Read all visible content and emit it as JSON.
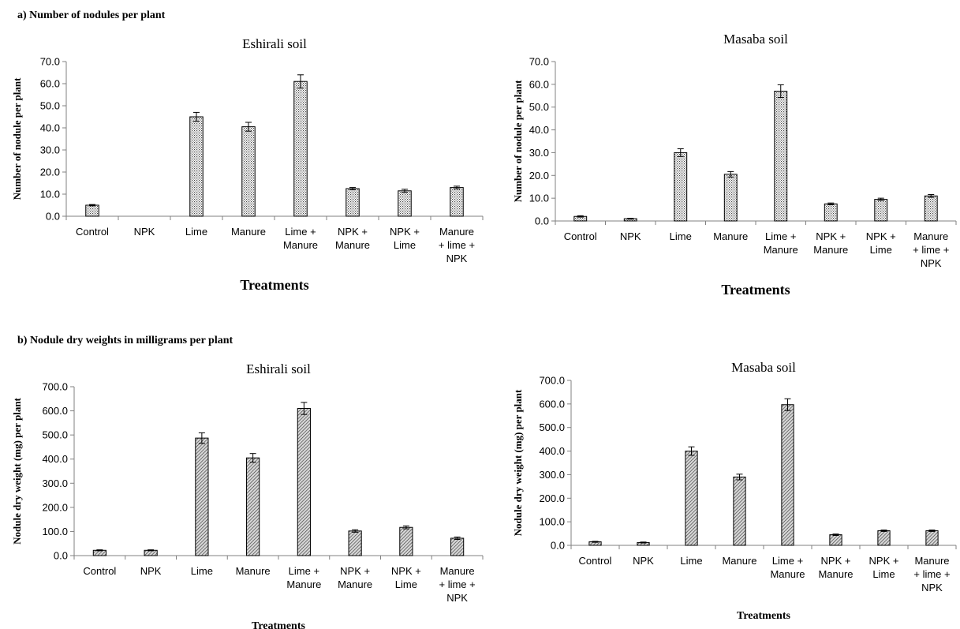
{
  "sections": [
    {
      "label": "a)   Number of nodules per plant"
    },
    {
      "label": "b)   Nodule dry weights in milligrams per plant"
    }
  ],
  "chart_data": [
    {
      "type": "bar",
      "title": "Eshirali   soil",
      "xlabel": "Treatments",
      "ylabel": "Number of nodule per plant",
      "ylim": [
        0,
        70
      ],
      "yticks": [
        "0.0",
        "10.0",
        "20.0",
        "30.0",
        "40.0",
        "50.0",
        "60.0",
        "70.0"
      ],
      "categories": [
        "Control",
        "NPK",
        "Lime",
        "Manure",
        "Lime + Manure",
        "NPK + Manure",
        "NPK + Lime",
        "Manure + lime + NPK"
      ],
      "category_lines": [
        [
          "Control"
        ],
        [
          "NPK"
        ],
        [
          "Lime"
        ],
        [
          "Manure"
        ],
        [
          "Lime +",
          "Manure"
        ],
        [
          "NPK +",
          "Manure"
        ],
        [
          "NPK +",
          "Lime"
        ],
        [
          "Manure",
          "+ lime +",
          "NPK"
        ]
      ],
      "values": [
        5.0,
        0.0,
        45.0,
        40.5,
        61.0,
        12.5,
        11.5,
        13.0
      ],
      "errors": [
        0.3,
        0.0,
        2.0,
        2.0,
        3.0,
        0.5,
        0.7,
        0.6
      ],
      "bar_fill": "dotted",
      "grid": false,
      "legend": "none"
    },
    {
      "type": "bar",
      "title": "Masaba soil",
      "xlabel": "Treatments",
      "ylabel": "Number of nodule per plant",
      "ylim": [
        0,
        70
      ],
      "yticks": [
        "0.0",
        "10.0",
        "20.0",
        "30.0",
        "40.0",
        "50.0",
        "60.0",
        "70.0"
      ],
      "categories": [
        "Control",
        "NPK",
        "Lime",
        "Manure",
        "Lime + Manure",
        "NPK + Manure",
        "NPK + Lime",
        "Manure + lime + NPK"
      ],
      "category_lines": [
        [
          "Control"
        ],
        [
          "NPK"
        ],
        [
          "Lime"
        ],
        [
          "Manure"
        ],
        [
          "Lime +",
          "Manure"
        ],
        [
          "NPK +",
          "Manure"
        ],
        [
          "NPK +",
          "Lime"
        ],
        [
          "Manure",
          "+ lime +",
          "NPK"
        ]
      ],
      "values": [
        2.0,
        1.0,
        30.0,
        20.5,
        57.0,
        7.5,
        9.5,
        11.0
      ],
      "errors": [
        0.3,
        0.2,
        1.7,
        1.2,
        2.8,
        0.4,
        0.5,
        0.6
      ],
      "bar_fill": "dotted",
      "grid": false,
      "legend": "none"
    },
    {
      "type": "bar",
      "title": "Eshirali   soil",
      "xlabel": "Treatments",
      "ylabel": "Nodule dry weight (mg) per plant",
      "ylim": [
        0,
        700
      ],
      "yticks": [
        "0.0",
        "100.0",
        "200.0",
        "300.0",
        "400.0",
        "500.0",
        "600.0",
        "700.0"
      ],
      "categories": [
        "Control",
        "NPK",
        "Lime",
        "Manure",
        "Lime + Manure",
        "NPK + Manure",
        "NPK + Lime",
        "Manure + lime + NPK"
      ],
      "category_lines": [
        [
          "Control"
        ],
        [
          "NPK"
        ],
        [
          "Lime"
        ],
        [
          "Manure"
        ],
        [
          "Lime +",
          "Manure"
        ],
        [
          "NPK +",
          "Manure"
        ],
        [
          "NPK +",
          "Lime"
        ],
        [
          "Manure",
          "+ lime +",
          "NPK"
        ]
      ],
      "values": [
        22,
        22,
        487,
        405,
        610,
        102,
        117,
        72
      ],
      "errors": [
        2,
        2,
        22,
        18,
        25,
        5,
        6,
        5
      ],
      "bar_fill": "hatched",
      "grid": false,
      "legend": "none"
    },
    {
      "type": "bar",
      "title": "Masaba soil",
      "xlabel": "Treatments",
      "ylabel": "Nodule dry weight (mg) per plant",
      "ylim": [
        0,
        700
      ],
      "yticks": [
        "0.0",
        "100.0",
        "200.0",
        "300.0",
        "400.0",
        "500.0",
        "600.0",
        "700.0"
      ],
      "categories": [
        "Control",
        "NPK",
        "Lime",
        "Manure",
        "Lime + Manure",
        "NPK + Manure",
        "NPK + Lime",
        "Manure + lime + NPK"
      ],
      "category_lines": [
        [
          "Control"
        ],
        [
          "NPK"
        ],
        [
          "Lime"
        ],
        [
          "Manure"
        ],
        [
          "Lime +",
          "Manure"
        ],
        [
          "NPK +",
          "Manure"
        ],
        [
          "NPK +",
          "Lime"
        ],
        [
          "Manure",
          "+ lime +",
          "NPK"
        ]
      ],
      "values": [
        15,
        12,
        400,
        290,
        597,
        45,
        62,
        62
      ],
      "errors": [
        2,
        2,
        18,
        12,
        25,
        3,
        3,
        3
      ],
      "bar_fill": "hatched",
      "grid": false,
      "legend": "none"
    }
  ]
}
